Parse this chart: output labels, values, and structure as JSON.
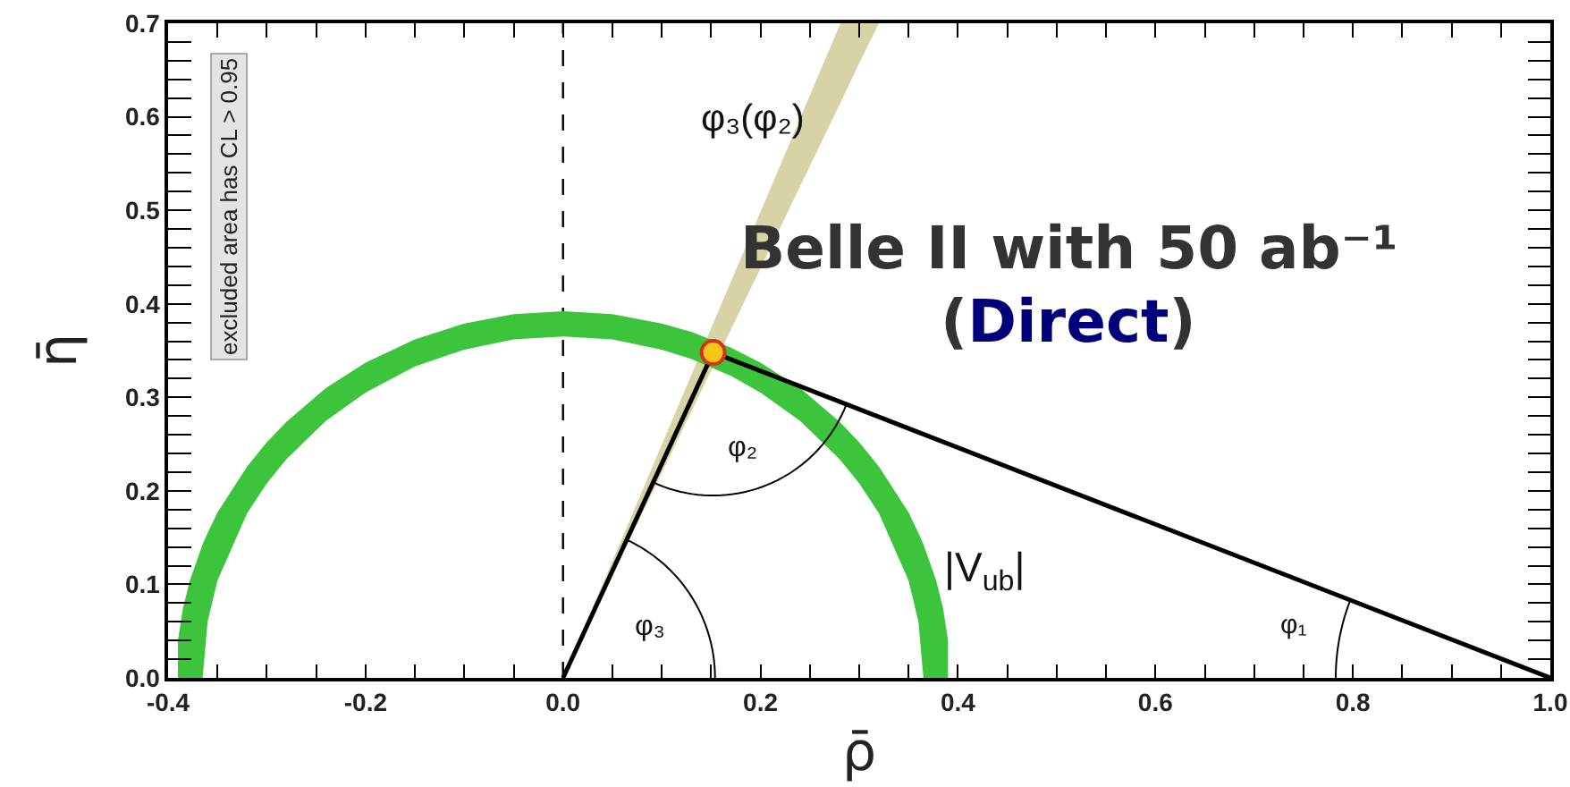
{
  "chart_data": {
    "type": "line",
    "title": "Belle II with 50 ab⁻¹",
    "subtitle": "(Direct)",
    "xlabel": "ρ̄",
    "ylabel": "η̄",
    "xlim": [
      -0.4,
      1.0
    ],
    "ylim": [
      0,
      0.7
    ],
    "xticks": [
      -0.4,
      {
        "value": -0.35,
        "label": null
      },
      {
        "value": -0.3,
        "label": null
      },
      {
        "value": -0.25,
        "label": null
      },
      -0.2,
      {
        "value": -0.15,
        "label": null
      },
      {
        "value": -0.1,
        "label": null
      },
      {
        "value": -0.05,
        "label": null
      },
      {
        "value": 0,
        "label": "0.0"
      },
      {
        "value": 0.05,
        "label": null
      },
      {
        "value": 0.1,
        "label": null
      },
      {
        "value": 0.15,
        "label": null
      },
      0.2,
      {
        "value": 0.25,
        "label": null
      },
      {
        "value": 0.3,
        "label": null
      },
      {
        "value": 0.35,
        "label": null
      },
      0.4,
      {
        "value": 0.45,
        "label": null
      },
      {
        "value": 0.5,
        "label": null
      },
      {
        "value": 0.55,
        "label": null
      },
      0.6,
      {
        "value": 0.65,
        "label": null
      },
      {
        "value": 0.7,
        "label": null
      },
      {
        "value": 0.75,
        "label": null
      },
      0.8,
      {
        "value": 0.85,
        "label": null
      },
      {
        "value": 0.9,
        "label": null
      },
      {
        "value": 0.95,
        "label": null
      },
      {
        "value": 1,
        "label": "1.0"
      }
    ],
    "yticks": [
      {
        "value": 0,
        "label": "0.0"
      },
      {
        "value": 0.02,
        "label": null
      },
      {
        "value": 0.04,
        "label": null
      },
      {
        "value": 0.06,
        "label": null
      },
      {
        "value": 0.08,
        "label": null
      },
      0.1,
      {
        "value": 0.12,
        "label": null
      },
      {
        "value": 0.14,
        "label": null
      },
      {
        "value": 0.16,
        "label": null
      },
      {
        "value": 0.18,
        "label": null
      },
      0.2,
      {
        "value": 0.22,
        "label": null
      },
      {
        "value": 0.24,
        "label": null
      },
      {
        "value": 0.26,
        "label": null
      },
      {
        "value": 0.28,
        "label": null
      },
      0.3,
      {
        "value": 0.32,
        "label": null
      },
      {
        "value": 0.34,
        "label": null
      },
      {
        "value": 0.36,
        "label": null
      },
      {
        "value": 0.38,
        "label": null
      },
      0.4,
      {
        "value": 0.42,
        "label": null
      },
      {
        "value": 0.44,
        "label": null
      },
      {
        "value": 0.46,
        "label": null
      },
      {
        "value": 0.48,
        "label": null
      },
      0.5,
      {
        "value": 0.52,
        "label": null
      },
      {
        "value": 0.54,
        "label": null
      },
      {
        "value": 0.56,
        "label": null
      },
      {
        "value": 0.58,
        "label": null
      },
      0.6,
      {
        "value": 0.62,
        "label": null
      },
      {
        "value": 0.64,
        "label": null
      },
      {
        "value": 0.66,
        "label": null
      },
      {
        "value": 0.68,
        "label": null
      },
      0.7
    ],
    "series": [
      {
        "color": "#d8d3a6",
        "x": [
          0.03,
          0.281,
          0.299,
          0.32
        ],
        "values": [
          null,
          null,
          null,
          null
        ],
        "lower": [
          0.066,
          0.615,
          0.655,
          0.7
        ],
        "upper": [
          0.075,
          0.7,
          0.7,
          0.7
        ]
      },
      {
        "color": "#3dc43d",
        "x": [
          -0.39,
          -0.385,
          -0.378,
          -0.365,
          -0.36,
          -0.35,
          -0.32,
          -0.3,
          -0.28,
          -0.24,
          -0.2,
          -0.15,
          -0.1,
          -0.05,
          0,
          0.05,
          0.1,
          0.13,
          0.17,
          0.2,
          0.24,
          0.28,
          0.3,
          0.32,
          0.35,
          0.36,
          0.365,
          0.378,
          0.385,
          0.39
        ],
        "values": [
          null,
          null,
          null,
          null,
          null,
          null,
          null,
          null,
          null,
          null,
          null,
          null,
          null,
          null,
          null,
          null,
          null,
          null,
          null,
          null,
          null,
          null,
          null,
          null,
          null,
          null,
          null,
          null,
          null,
          null
        ],
        "lower": [
          0,
          0,
          0,
          0,
          0.06,
          0.104,
          0.176,
          0.208,
          0.234,
          0.275,
          0.305,
          0.333,
          0.351,
          0.362,
          0.365,
          0.362,
          0.351,
          0.341,
          0.323,
          0.305,
          0.275,
          0.234,
          0.208,
          0.176,
          0.104,
          0.06,
          0,
          0,
          0,
          0
        ],
        "upper": [
          0.04,
          0.074,
          0.104,
          0.143,
          0.155,
          0.177,
          0.226,
          0.252,
          0.274,
          0.31,
          0.337,
          0.362,
          0.379,
          0.389,
          0.392,
          0.389,
          0.379,
          0.37,
          0.353,
          0.337,
          0.31,
          0.274,
          0.252,
          0.226,
          0.177,
          0.155,
          0.143,
          0.104,
          0.074,
          0.04
        ]
      },
      {
        "color": "#000000",
        "x": [
          0,
          0.152,
          1
        ],
        "values": [
          0,
          0.348,
          0
        ]
      },
      {
        "type": "scatter",
        "color": "#f5c518",
        "marker": "circle",
        "x": [
          0.152
        ],
        "values": [
          0.348
        ]
      }
    ],
    "ref_lines": [
      {
        "axis": "x",
        "value": 0,
        "color": "#000000",
        "line_style": "dashed"
      }
    ],
    "annotations": [
      "excluded area has CL > 0.95",
      "φ₃(φ₂)",
      "φ₂",
      "φ₃",
      "φ₁",
      "|V$_{ub}$|"
    ]
  }
}
